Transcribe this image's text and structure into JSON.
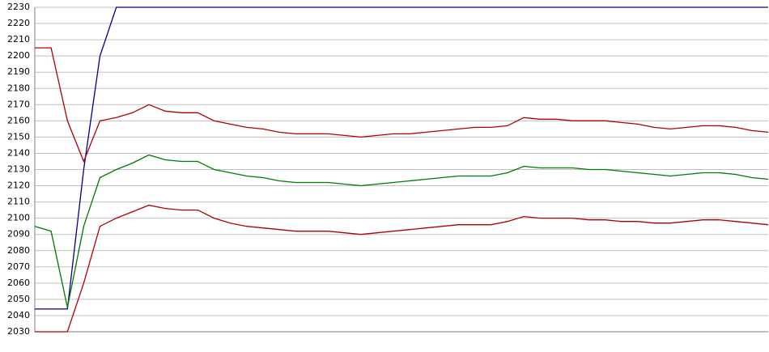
{
  "chart_data": {
    "type": "line",
    "categories": [
      null,
      null,
      null,
      null,
      null,
      null,
      null,
      null,
      null,
      null,
      null,
      null,
      null,
      null,
      null,
      null,
      null,
      null,
      null,
      null,
      null,
      null,
      null,
      null,
      null,
      null,
      null,
      null,
      null,
      null,
      null,
      null,
      null,
      null,
      null,
      null,
      null,
      null,
      null,
      null,
      null,
      null,
      null,
      null,
      null,
      null
    ],
    "series": [
      {
        "color": "#00008b",
        "values": [
          2044,
          2044,
          2044,
          2130,
          2200,
          2230,
          2230,
          2230,
          2230,
          2230,
          2230,
          2230,
          2230,
          2230,
          2230,
          2230,
          2230,
          2230,
          2230,
          2230,
          2230,
          2230,
          2230,
          2230,
          2230,
          2230,
          2230,
          2230,
          2230,
          2230,
          2230,
          2230,
          2230,
          2230,
          2230,
          2230,
          2230,
          2230,
          2230,
          2230,
          2230,
          2230,
          2230,
          2230,
          2230,
          2230
        ]
      },
      {
        "color": "#b00000",
        "values": [
          2205,
          2205,
          2160,
          2135,
          2160,
          2162,
          2165,
          2170,
          2166,
          2165,
          2165,
          2160,
          2158,
          2156,
          2155,
          2153,
          2152,
          2152,
          2152,
          2151,
          2150,
          2151,
          2152,
          2152,
          2153,
          2154,
          2155,
          2156,
          2156,
          2157,
          2162,
          2161,
          2161,
          2160,
          2160,
          2160,
          2159,
          2158,
          2156,
          2155,
          2156,
          2157,
          2157,
          2156,
          2154,
          2153
        ]
      },
      {
        "color": "#007a00",
        "values": [
          2095,
          2092,
          2045,
          2095,
          2125,
          2130,
          2134,
          2139,
          2136,
          2135,
          2135,
          2130,
          2128,
          2126,
          2125,
          2123,
          2122,
          2122,
          2122,
          2121,
          2120,
          2121,
          2122,
          2123,
          2124,
          2125,
          2126,
          2126,
          2126,
          2128,
          2132,
          2131,
          2131,
          2131,
          2130,
          2130,
          2129,
          2128,
          2127,
          2126,
          2127,
          2128,
          2128,
          2127,
          2125,
          2124
        ]
      },
      {
        "color": "#b00000",
        "values": [
          2030,
          2030,
          2030,
          2060,
          2095,
          2100,
          2104,
          2108,
          2106,
          2105,
          2105,
          2100,
          2097,
          2095,
          2094,
          2093,
          2092,
          2092,
          2092,
          2091,
          2090,
          2091,
          2092,
          2093,
          2094,
          2095,
          2096,
          2096,
          2096,
          2098,
          2101,
          2100,
          2100,
          2100,
          2099,
          2099,
          2098,
          2098,
          2097,
          2097,
          2098,
          2099,
          2099,
          2098,
          2097,
          2096
        ]
      }
    ],
    "ylim": [
      2030,
      2230
    ],
    "yticks": [
      2030,
      2040,
      2050,
      2060,
      2070,
      2080,
      2090,
      2100,
      2110,
      2120,
      2130,
      2140,
      2150,
      2160,
      2170,
      2180,
      2190,
      2200,
      2210,
      2220,
      2230
    ],
    "grid": true
  }
}
